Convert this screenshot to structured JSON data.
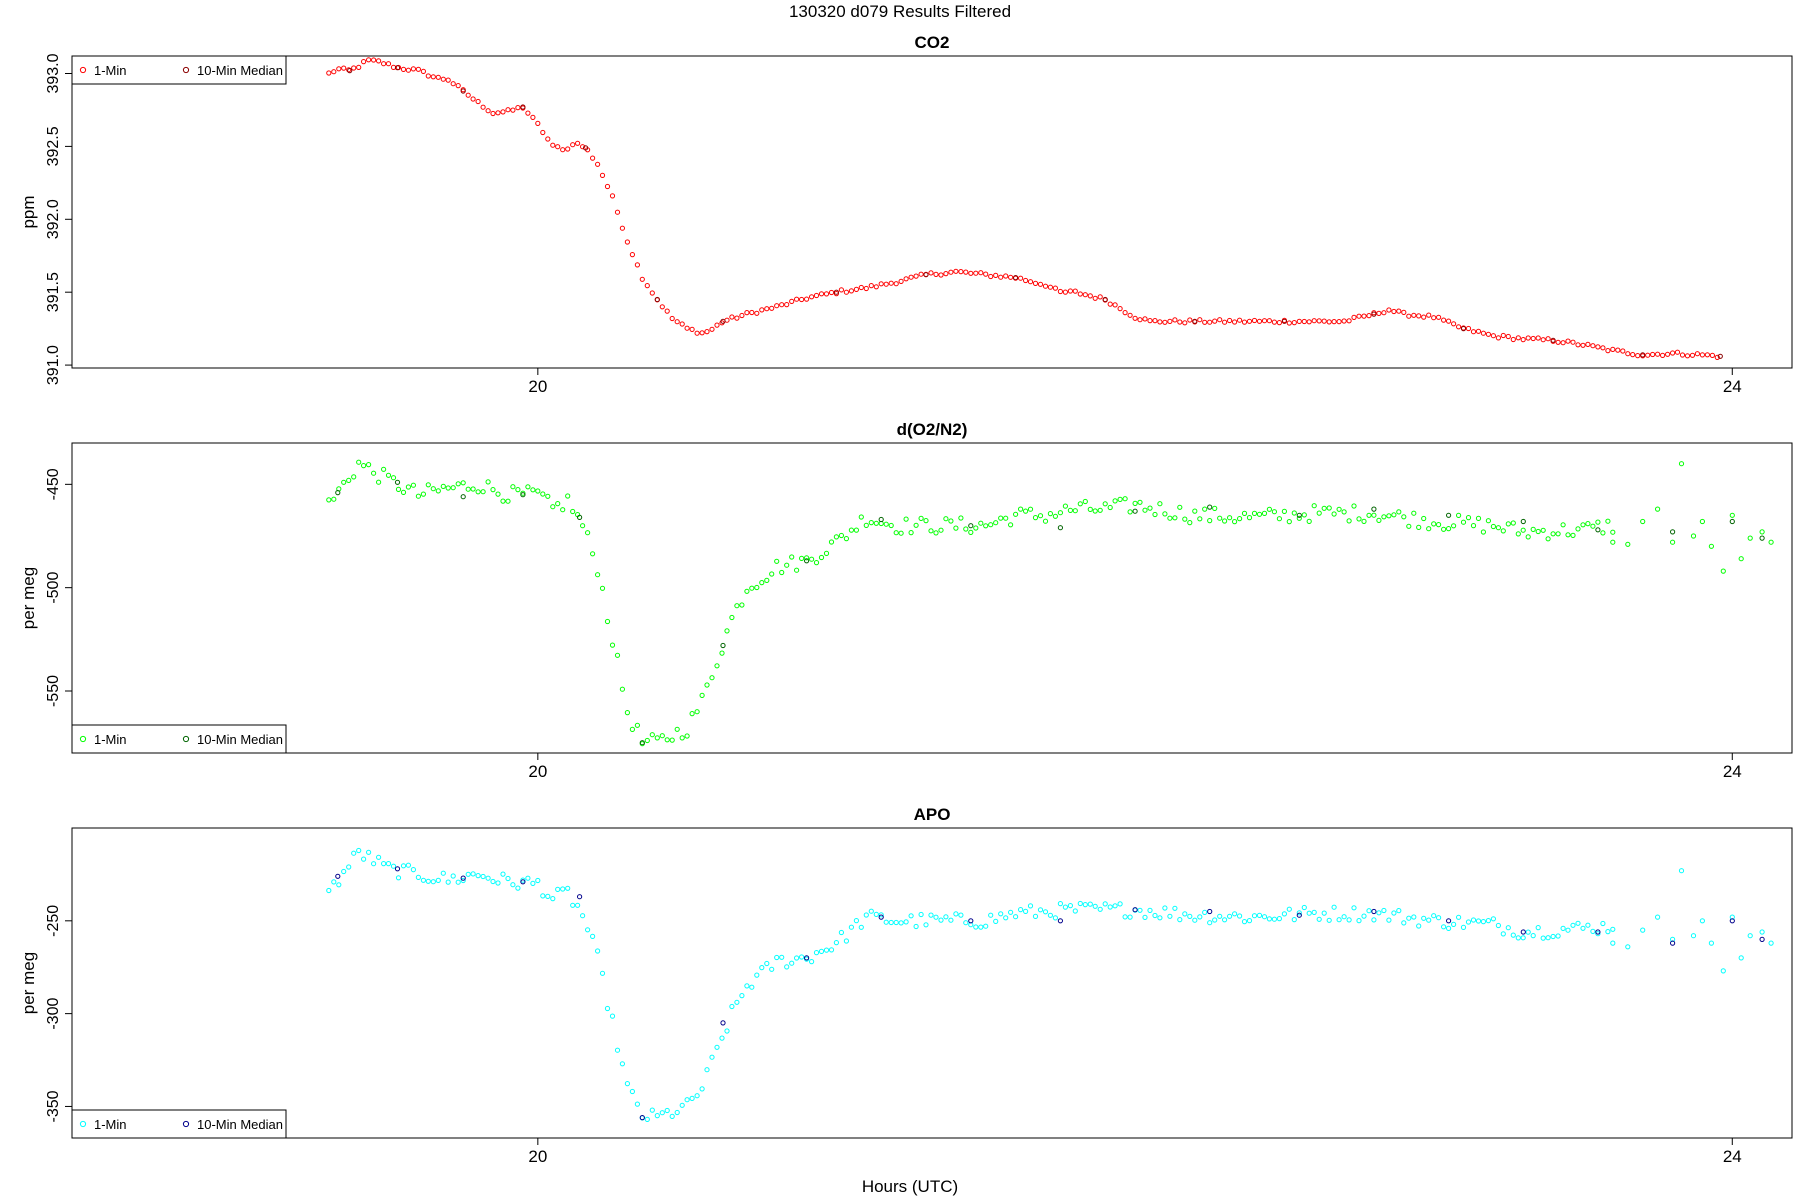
{
  "page_title": "130320   d079   Results Filtered",
  "x_axis_label": "Hours (UTC)",
  "chart_data": [
    {
      "type": "scatter",
      "title": "CO2",
      "ylabel": "ppm",
      "xlabel": "",
      "xlim": [
        18.44,
        24.2
      ],
      "ylim": [
        390.98,
        393.12
      ],
      "xticks": [
        {
          "value": 20,
          "label": "20"
        },
        {
          "value": 24,
          "label": "24"
        }
      ],
      "yticks": [
        {
          "value": 391.0,
          "label": "391.0"
        },
        {
          "value": 391.5,
          "label": "391.5"
        },
        {
          "value": 392.0,
          "label": "392.0"
        },
        {
          "value": 392.5,
          "label": "392.5"
        },
        {
          "value": 393.0,
          "label": "393.0"
        }
      ],
      "grid": false,
      "legend_position": "top-left",
      "series": [
        {
          "name": "1-Min",
          "color": "#ff0000",
          "anchors": [
            [
              19.3,
              393.0
            ],
            [
              19.33,
              393.03
            ],
            [
              19.37,
              393.02
            ],
            [
              19.4,
              393.05
            ],
            [
              19.43,
              393.09
            ],
            [
              19.47,
              393.08
            ],
            [
              19.53,
              393.04
            ],
            [
              19.6,
              393.02
            ],
            [
              19.66,
              392.97
            ],
            [
              19.7,
              392.96
            ],
            [
              19.75,
              392.88
            ],
            [
              19.8,
              392.8
            ],
            [
              19.85,
              392.73
            ],
            [
              19.9,
              392.74
            ],
            [
              19.95,
              392.77
            ],
            [
              20.0,
              392.65
            ],
            [
              20.05,
              392.5
            ],
            [
              20.1,
              392.48
            ],
            [
              20.12,
              392.53
            ],
            [
              20.16,
              392.49
            ],
            [
              20.2,
              392.38
            ],
            [
              20.25,
              392.15
            ],
            [
              20.3,
              391.85
            ],
            [
              20.35,
              391.6
            ],
            [
              20.4,
              391.45
            ],
            [
              20.45,
              391.32
            ],
            [
              20.5,
              391.25
            ],
            [
              20.55,
              391.22
            ],
            [
              20.58,
              391.24
            ],
            [
              20.62,
              391.3
            ],
            [
              20.7,
              391.35
            ],
            [
              20.8,
              391.4
            ],
            [
              20.9,
              391.46
            ],
            [
              21.0,
              391.5
            ],
            [
              21.1,
              391.53
            ],
            [
              21.2,
              391.57
            ],
            [
              21.3,
              391.62
            ],
            [
              21.4,
              391.64
            ],
            [
              21.5,
              391.62
            ],
            [
              21.6,
              391.6
            ],
            [
              21.7,
              391.55
            ],
            [
              21.75,
              391.5
            ],
            [
              21.8,
              391.5
            ],
            [
              21.9,
              391.45
            ],
            [
              22.0,
              391.33
            ],
            [
              22.05,
              391.3
            ],
            [
              22.2,
              391.3
            ],
            [
              22.4,
              391.3
            ],
            [
              22.6,
              391.3
            ],
            [
              22.7,
              391.3
            ],
            [
              22.8,
              391.35
            ],
            [
              22.85,
              391.38
            ],
            [
              22.9,
              391.35
            ],
            [
              23.0,
              391.33
            ],
            [
              23.05,
              391.29
            ],
            [
              23.1,
              391.25
            ],
            [
              23.2,
              391.2
            ],
            [
              23.3,
              391.18
            ],
            [
              23.4,
              391.17
            ],
            [
              23.5,
              391.14
            ],
            [
              23.6,
              391.1
            ],
            [
              23.7,
              391.07
            ],
            [
              23.8,
              391.08
            ],
            [
              23.9,
              391.07
            ],
            [
              23.96,
              391.06
            ]
          ],
          "noise": 0.012
        },
        {
          "name": "10-Min Median",
          "color": "#8b0000",
          "points": [
            [
              19.37,
              393.02
            ],
            [
              19.53,
              393.04
            ],
            [
              19.75,
              392.88
            ],
            [
              19.95,
              392.77
            ],
            [
              20.16,
              392.49
            ],
            [
              20.4,
              391.45
            ],
            [
              20.62,
              391.3
            ],
            [
              21.0,
              391.5
            ],
            [
              21.3,
              391.62
            ],
            [
              21.6,
              391.6
            ],
            [
              21.9,
              391.45
            ],
            [
              22.2,
              391.3
            ],
            [
              22.5,
              391.3
            ],
            [
              22.8,
              391.35
            ],
            [
              23.1,
              391.25
            ],
            [
              23.4,
              391.17
            ],
            [
              23.7,
              391.07
            ],
            [
              23.96,
              391.06
            ]
          ]
        }
      ]
    },
    {
      "type": "scatter",
      "title": "d(O2/N2)",
      "ylabel": "per meg",
      "xlabel": "",
      "xlim": [
        18.44,
        24.2
      ],
      "ylim": [
        -580,
        -430
      ],
      "xticks": [
        {
          "value": 20,
          "label": "20"
        },
        {
          "value": 24,
          "label": "24"
        }
      ],
      "yticks": [
        {
          "value": -450,
          "label": "-450"
        },
        {
          "value": -500,
          "label": "-500"
        },
        {
          "value": -550,
          "label": "-550"
        }
      ],
      "grid": false,
      "legend_position": "bottom-left",
      "series": [
        {
          "name": "1-Min",
          "color": "#00ff00",
          "anchors": [
            [
              19.3,
              -460
            ],
            [
              19.4,
              -440
            ],
            [
              19.5,
              -448
            ],
            [
              19.6,
              -455
            ],
            [
              19.7,
              -452
            ],
            [
              19.8,
              -450
            ],
            [
              19.9,
              -455
            ],
            [
              20.0,
              -455
            ],
            [
              20.05,
              -462
            ],
            [
              20.1,
              -458
            ],
            [
              20.15,
              -470
            ],
            [
              20.2,
              -490
            ],
            [
              20.25,
              -525
            ],
            [
              20.3,
              -560
            ],
            [
              20.35,
              -575
            ],
            [
              20.4,
              -575
            ],
            [
              20.5,
              -568
            ],
            [
              20.55,
              -555
            ],
            [
              20.6,
              -535
            ],
            [
              20.65,
              -515
            ],
            [
              20.7,
              -500
            ],
            [
              20.8,
              -490
            ],
            [
              20.9,
              -487
            ],
            [
              21.0,
              -478
            ],
            [
              21.1,
              -466
            ],
            [
              21.2,
              -470
            ],
            [
              21.3,
              -470
            ],
            [
              21.4,
              -470
            ],
            [
              21.5,
              -470
            ],
            [
              21.6,
              -465
            ],
            [
              21.7,
              -465
            ],
            [
              21.8,
              -462
            ],
            [
              21.9,
              -462
            ],
            [
              22.0,
              -460
            ],
            [
              22.2,
              -465
            ],
            [
              22.4,
              -466
            ],
            [
              22.6,
              -464
            ],
            [
              22.8,
              -464
            ],
            [
              23.0,
              -468
            ],
            [
              23.2,
              -470
            ],
            [
              23.3,
              -473
            ],
            [
              23.5,
              -472
            ],
            [
              23.6,
              -470
            ]
          ],
          "extra": [
            [
              23.6,
              -478
            ],
            [
              23.65,
              -479
            ],
            [
              23.7,
              -468
            ],
            [
              23.75,
              -462
            ],
            [
              23.8,
              -478
            ],
            [
              23.83,
              -440
            ],
            [
              23.87,
              -475
            ],
            [
              23.9,
              -468
            ],
            [
              23.93,
              -480
            ],
            [
              23.97,
              -492
            ],
            [
              24.0,
              -465
            ],
            [
              24.03,
              -486
            ],
            [
              24.06,
              -476
            ],
            [
              24.1,
              -473
            ],
            [
              24.13,
              -478
            ]
          ],
          "gap": [
            23.6,
            23.6
          ],
          "noise": 4
        },
        {
          "name": "10-Min Median",
          "color": "#006400",
          "points": [
            [
              19.33,
              -454
            ],
            [
              19.53,
              -449
            ],
            [
              19.75,
              -456
            ],
            [
              19.95,
              -455
            ],
            [
              20.14,
              -466
            ],
            [
              20.35,
              -575
            ],
            [
              20.62,
              -528
            ],
            [
              20.9,
              -487
            ],
            [
              21.15,
              -467
            ],
            [
              21.45,
              -470
            ],
            [
              21.75,
              -471
            ],
            [
              22.0,
              -463
            ],
            [
              22.25,
              -461
            ],
            [
              22.55,
              -465
            ],
            [
              22.8,
              -462
            ],
            [
              23.05,
              -465
            ],
            [
              23.3,
              -468
            ],
            [
              23.55,
              -472
            ],
            [
              23.8,
              -473
            ],
            [
              24.0,
              -468
            ],
            [
              24.1,
              -476
            ]
          ]
        }
      ]
    },
    {
      "type": "scatter",
      "title": "APO",
      "ylabel": "per meg",
      "xlabel": "Hours (UTC)",
      "xlim": [
        18.44,
        24.2
      ],
      "ylim": [
        -367,
        -200
      ],
      "xticks": [
        {
          "value": 20,
          "label": "20"
        },
        {
          "value": 24,
          "label": "24"
        }
      ],
      "yticks": [
        {
          "value": -250,
          "label": "-250"
        },
        {
          "value": -300,
          "label": "-300"
        },
        {
          "value": -350,
          "label": "-350"
        }
      ],
      "grid": false,
      "legend_position": "bottom-left",
      "series": [
        {
          "name": "1-Min",
          "color": "#00ffff",
          "anchors": [
            [
              19.3,
              -235
            ],
            [
              19.4,
              -213
            ],
            [
              19.5,
              -222
            ],
            [
              19.6,
              -225
            ],
            [
              19.7,
              -228
            ],
            [
              19.8,
              -225
            ],
            [
              19.9,
              -229
            ],
            [
              20.0,
              -230
            ],
            [
              20.05,
              -238
            ],
            [
              20.1,
              -235
            ],
            [
              20.15,
              -247
            ],
            [
              20.2,
              -270
            ],
            [
              20.25,
              -305
            ],
            [
              20.3,
              -340
            ],
            [
              20.35,
              -355
            ],
            [
              20.4,
              -356
            ],
            [
              20.5,
              -350
            ],
            [
              20.55,
              -340
            ],
            [
              20.6,
              -320
            ],
            [
              20.65,
              -300
            ],
            [
              20.7,
              -285
            ],
            [
              20.8,
              -272
            ],
            [
              20.9,
              -270
            ],
            [
              21.0,
              -262
            ],
            [
              21.1,
              -248
            ],
            [
              21.2,
              -250
            ],
            [
              21.3,
              -250
            ],
            [
              21.4,
              -250
            ],
            [
              21.5,
              -250
            ],
            [
              21.6,
              -246
            ],
            [
              21.7,
              -245
            ],
            [
              21.8,
              -244
            ],
            [
              21.9,
              -244
            ],
            [
              22.0,
              -244
            ],
            [
              22.2,
              -247
            ],
            [
              22.4,
              -248
            ],
            [
              22.6,
              -246
            ],
            [
              22.8,
              -246
            ],
            [
              23.0,
              -250
            ],
            [
              23.2,
              -252
            ],
            [
              23.3,
              -256
            ],
            [
              23.5,
              -254
            ],
            [
              23.6,
              -253
            ]
          ],
          "extra": [
            [
              23.6,
              -262
            ],
            [
              23.65,
              -264
            ],
            [
              23.7,
              -255
            ],
            [
              23.75,
              -248
            ],
            [
              23.8,
              -260
            ],
            [
              23.83,
              -223
            ],
            [
              23.87,
              -258
            ],
            [
              23.9,
              -250
            ],
            [
              23.93,
              -262
            ],
            [
              23.97,
              -277
            ],
            [
              24.0,
              -248
            ],
            [
              24.03,
              -270
            ],
            [
              24.06,
              -258
            ],
            [
              24.1,
              -256
            ],
            [
              24.13,
              -262
            ]
          ],
          "gap": [
            23.6,
            23.6
          ],
          "noise": 4
        },
        {
          "name": "10-Min Median",
          "color": "#00008b",
          "points": [
            [
              19.33,
              -226
            ],
            [
              19.53,
              -222
            ],
            [
              19.75,
              -227
            ],
            [
              19.95,
              -229
            ],
            [
              20.14,
              -237
            ],
            [
              20.35,
              -356
            ],
            [
              20.62,
              -305
            ],
            [
              20.9,
              -270
            ],
            [
              21.15,
              -248
            ],
            [
              21.45,
              -250
            ],
            [
              21.75,
              -250
            ],
            [
              22.0,
              -244
            ],
            [
              22.25,
              -245
            ],
            [
              22.55,
              -247
            ],
            [
              22.8,
              -245
            ],
            [
              23.05,
              -250
            ],
            [
              23.3,
              -256
            ],
            [
              23.55,
              -256
            ],
            [
              23.8,
              -262
            ],
            [
              24.0,
              -250
            ],
            [
              24.1,
              -260
            ]
          ]
        }
      ]
    }
  ]
}
